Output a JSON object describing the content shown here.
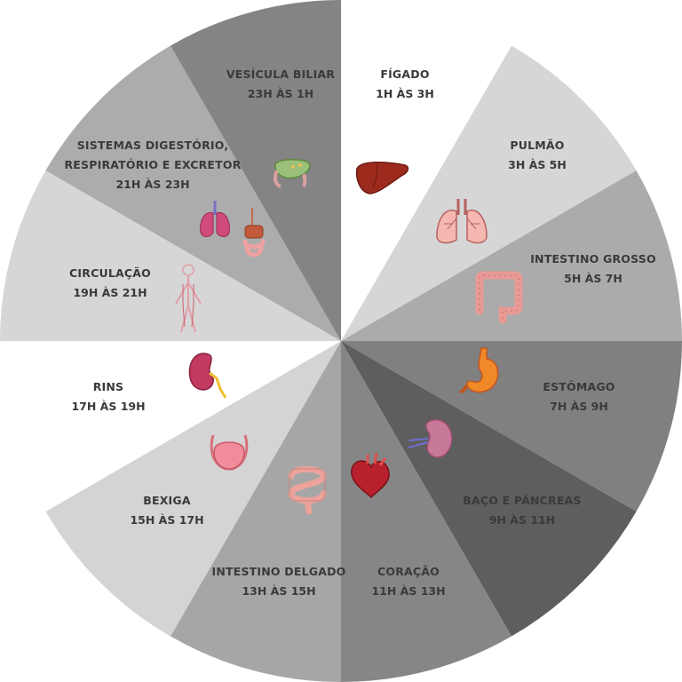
{
  "wheel": {
    "segments": [
      {
        "label_lines": [
          "FÍGADO"
        ],
        "time": "1H ÀS 3H",
        "color": "#ffffff",
        "icon": "liver-icon"
      },
      {
        "label_lines": [
          "PULMÃO"
        ],
        "time": "3H ÀS 5H",
        "color": "#d6d6d6",
        "icon": "lungs-icon"
      },
      {
        "label_lines": [
          "INTESTINO GROSSO"
        ],
        "time": "5H ÀS 7H",
        "color": "#ababab",
        "icon": "large-intestine-icon"
      },
      {
        "label_lines": [
          "ESTÔMAGO"
        ],
        "time": "7H ÀS 9H",
        "color": "#808080",
        "icon": "stomach-icon"
      },
      {
        "label_lines": [
          "BAÇO E PÂNCREAS"
        ],
        "time": "9H ÀS 11H",
        "color": "#5e5e5e",
        "icon": "spleen-icon"
      },
      {
        "label_lines": [
          "CORAÇÃO"
        ],
        "time": "11H ÀS 13H",
        "color": "#868686",
        "icon": "heart-icon"
      },
      {
        "label_lines": [
          "INTESTINO DELGADO"
        ],
        "time": "13H ÀS 15H",
        "color": "#a6a6a6",
        "icon": "small-intestine-icon"
      },
      {
        "label_lines": [
          "BEXIGA"
        ],
        "time": "15H ÀS 17H",
        "color": "#d4d4d4",
        "icon": "bladder-icon"
      },
      {
        "label_lines": [
          "RINS"
        ],
        "time": "17H ÀS 19H",
        "color": "#ffffff",
        "icon": "kidney-icon"
      },
      {
        "label_lines": [
          "CIRCULAÇÃO"
        ],
        "time": "19H ÀS 21H",
        "color": "#d6d6d6",
        "icon": "circulation-icon"
      },
      {
        "label_lines": [
          "SISTEMAS DIGESTÓRIO,",
          "RESPIRATÓRIO E EXCRETOR"
        ],
        "time": "21H ÀS 23H",
        "color": "#acacac",
        "icon": "organ-systems-icon"
      },
      {
        "label_lines": [
          "VESÍCULA BILIAR"
        ],
        "time": "23H ÀS 1H",
        "color": "#848484",
        "icon": "gallbladder-icon"
      }
    ]
  }
}
